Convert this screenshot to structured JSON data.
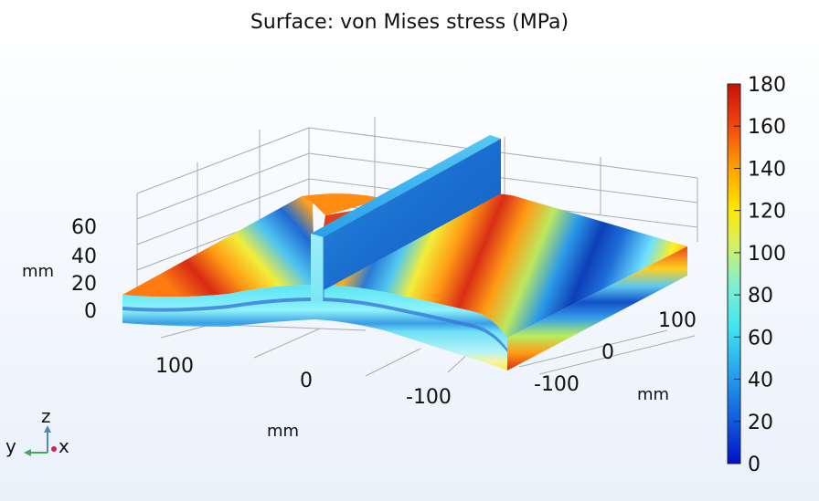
{
  "title": "Surface: von Mises stress (MPa)",
  "axes": {
    "z_ticks": [
      "0",
      "20",
      "40",
      "60"
    ],
    "z_unit": "mm",
    "x_ticks": [
      "100",
      "0",
      "-100"
    ],
    "x_unit": "mm",
    "y_ticks": [
      "100",
      "0",
      "-100"
    ],
    "y_unit": "mm"
  },
  "colorbar": {
    "ticks": [
      "0",
      "20",
      "40",
      "60",
      "80",
      "100",
      "120",
      "140",
      "160",
      "180"
    ],
    "min": 0,
    "max": 180
  },
  "triad": {
    "z": "z",
    "y": "y",
    "x": "x"
  },
  "colors": {
    "axis_z": "#5588bb",
    "axis_y": "#44aa55",
    "axis_x": "#cc2255"
  }
}
